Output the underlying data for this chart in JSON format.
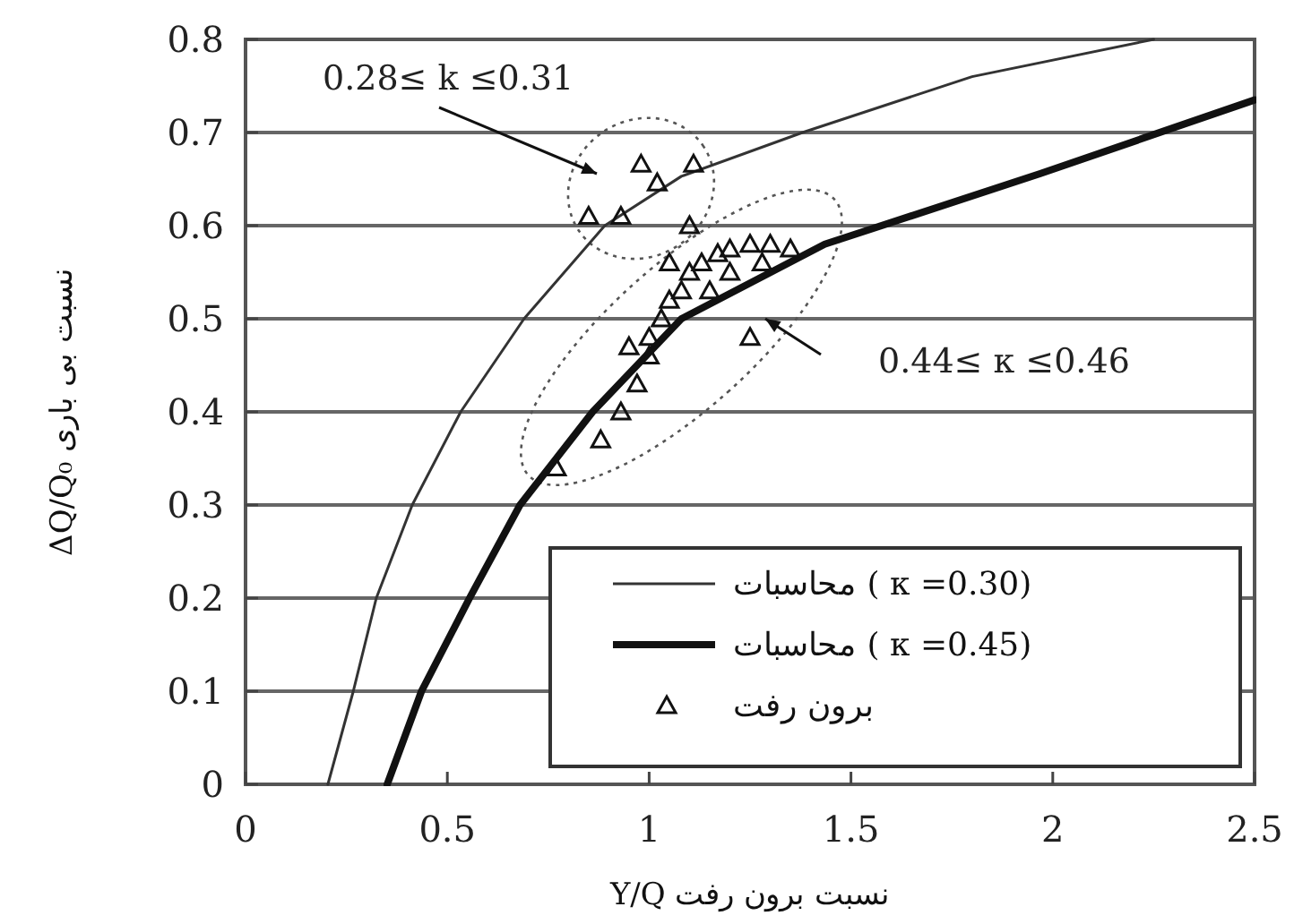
{
  "chart_data": {
    "type": "line",
    "xlabel": "نسبت برون رفت Y/Q",
    "ylabel": "نسبت بی باری ΔQ/Q₀",
    "xlim": [
      0,
      2.5
    ],
    "xticks": [
      0,
      0.5,
      1,
      1.5,
      2,
      2.5
    ],
    "ylim": [
      0,
      0.8
    ],
    "yticks": [
      0,
      0.1,
      0.2,
      0.3,
      0.4,
      0.5,
      0.6,
      0.7,
      0.8
    ],
    "grid": "y",
    "legend": "bottom right",
    "series": [
      {
        "name": "محاسبات ( κ =0.30)",
        "color": "#333333",
        "line_style": "solid",
        "x": [
          0.204,
          0.267,
          0.324,
          0.413,
          0.533,
          0.69,
          0.89,
          1.08,
          1.38,
          1.8,
          2.25
        ],
        "values": [
          0,
          0.1,
          0.2,
          0.3,
          0.4,
          0.5,
          0.6,
          0.653,
          0.7,
          0.76,
          0.8
        ]
      },
      {
        "name": "محاسبات ( κ =0.45)",
        "color": "#111111",
        "line_style": "solid",
        "x": [
          0.351,
          0.436,
          0.555,
          0.68,
          0.86,
          1.08,
          1.435,
          1.97,
          2.5
        ],
        "values": [
          0,
          0.1,
          0.2,
          0.3,
          0.4,
          0.5,
          0.58,
          0.656,
          0.735
        ]
      },
      {
        "name": "برون رفت",
        "type": "scatter",
        "color": "#111111",
        "marker": "triangle",
        "x": [
          0.85,
          0.93,
          0.98,
          1.02,
          1.11,
          0.77,
          0.88,
          0.93,
          0.97,
          1.0,
          1.03,
          1.05,
          1.08,
          1.1,
          1.13,
          1.17,
          1.2,
          1.25,
          1.3,
          1.35,
          1.1,
          1.05,
          1.15,
          1.25,
          1.0,
          0.95,
          1.2,
          1.28
        ],
        "values": [
          0.61,
          0.61,
          0.666,
          0.646,
          0.666,
          0.34,
          0.37,
          0.4,
          0.43,
          0.48,
          0.5,
          0.52,
          0.53,
          0.55,
          0.56,
          0.57,
          0.575,
          0.58,
          0.58,
          0.575,
          0.6,
          0.56,
          0.53,
          0.48,
          0.46,
          0.47,
          0.55,
          0.56
        ]
      }
    ],
    "annotations": [
      "0.28≤ k ≤0.31",
      "0.44≤ κ ≤0.46"
    ]
  }
}
